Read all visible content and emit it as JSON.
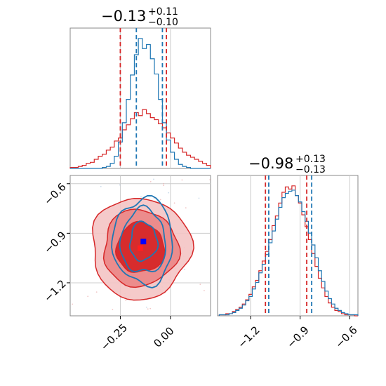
{
  "colors": {
    "red": "#d62728",
    "blue": "#1f77b4",
    "grid": "#cccccc",
    "frame": "#888888"
  },
  "chart_data": {
    "type": "corner",
    "grid": true,
    "parameters": [
      {
        "title": {
          "median": "−0.13",
          "plus": "+0.11",
          "minus": "−0.10"
        },
        "range": [
          -0.5,
          0.2
        ],
        "ticks": [
          -0.25,
          0.0
        ],
        "tick_labels": [
          "−0.25",
          "0.00"
        ],
        "quantiles": {
          "red": [
            -0.25,
            -0.02
          ],
          "blue": [
            -0.17,
            -0.04
          ]
        },
        "hist": {
          "bins": [
            -0.49,
            -0.47,
            -0.45,
            -0.43,
            -0.41,
            -0.39,
            -0.37,
            -0.35,
            -0.33,
            -0.31,
            -0.29,
            -0.27,
            -0.25,
            -0.23,
            -0.21,
            -0.19,
            -0.17,
            -0.15,
            -0.13,
            -0.11,
            -0.09,
            -0.07,
            -0.05,
            -0.03,
            -0.01,
            0.01,
            0.03,
            0.05,
            0.07,
            0.09,
            0.11,
            0.13,
            0.15,
            0.17,
            0.19
          ],
          "red": [
            1,
            1,
            2,
            3,
            5,
            6,
            9,
            12,
            14,
            18,
            21,
            27,
            30,
            38,
            43,
            49,
            55,
            52,
            58,
            54,
            50,
            48,
            44,
            40,
            35,
            30,
            25,
            20,
            16,
            13,
            11,
            9,
            7,
            5,
            3
          ],
          "blue": [
            0,
            0,
            0,
            0,
            0,
            0,
            0,
            0,
            1,
            2,
            5,
            12,
            26,
            45,
            68,
            92,
            112,
            128,
            118,
            122,
            108,
            93,
            68,
            45,
            28,
            16,
            9,
            4,
            2,
            1,
            0,
            0,
            0,
            0,
            0
          ]
        }
      },
      {
        "title": {
          "median": "−0.98",
          "plus": "+0.13",
          "minus": "−0.13"
        },
        "range": [
          -1.4,
          -0.55
        ],
        "ticks": [
          -1.2,
          -0.9,
          -0.6
        ],
        "tick_labels": [
          "−1.2",
          "−0.9",
          "−0.6"
        ],
        "quantiles": {
          "red": [
            -1.11,
            -0.86
          ],
          "blue": [
            -1.09,
            -0.83
          ]
        },
        "hist": {
          "bins": [
            -1.38,
            -1.36,
            -1.34,
            -1.32,
            -1.3,
            -1.28,
            -1.26,
            -1.24,
            -1.22,
            -1.2,
            -1.18,
            -1.16,
            -1.14,
            -1.12,
            -1.1,
            -1.08,
            -1.06,
            -1.04,
            -1.02,
            -1.0,
            -0.98,
            -0.96,
            -0.94,
            -0.92,
            -0.9,
            -0.88,
            -0.86,
            -0.84,
            -0.82,
            -0.8,
            -0.78,
            -0.76,
            -0.74,
            -0.72,
            -0.7,
            -0.68,
            -0.66,
            -0.64,
            -0.62,
            -0.6,
            -0.58,
            -0.56
          ],
          "red": [
            1,
            1,
            2,
            2,
            4,
            6,
            8,
            11,
            15,
            20,
            27,
            33,
            42,
            51,
            60,
            71,
            84,
            93,
            105,
            115,
            120,
            118,
            121,
            112,
            105,
            94,
            83,
            71,
            58,
            46,
            35,
            26,
            18,
            12,
            8,
            5,
            4,
            2,
            1,
            1,
            1,
            0
          ],
          "blue": [
            1,
            1,
            1,
            2,
            3,
            5,
            7,
            10,
            14,
            18,
            25,
            31,
            40,
            48,
            57,
            68,
            79,
            90,
            101,
            110,
            114,
            116,
            117,
            112,
            106,
            97,
            88,
            77,
            66,
            54,
            42,
            32,
            23,
            16,
            11,
            7,
            5,
            3,
            2,
            1,
            1,
            1
          ]
        }
      }
    ],
    "joint": {
      "red_center": [
        -0.15,
        -0.99
      ],
      "blue_center": [
        -0.135,
        -0.95
      ],
      "red_sigma": [
        0.12,
        0.15
      ],
      "blue_sigma": [
        0.075,
        0.13
      ],
      "red_levels": [
        1.0,
        1.55,
        2.05
      ],
      "blue_levels": [
        0.9,
        1.5,
        2.0
      ]
    }
  }
}
